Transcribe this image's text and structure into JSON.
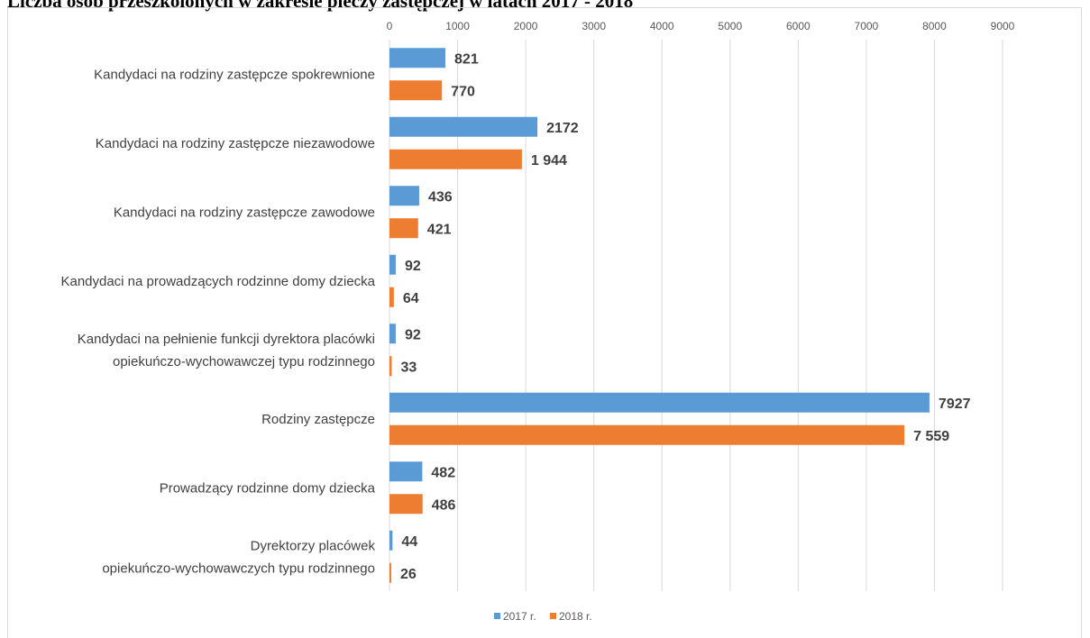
{
  "page": {
    "title": "Liczba osób przeszkolonych w zakresie pieczy zastępczej w latach 2017 - 2018"
  },
  "chart_data": {
    "type": "bar",
    "orientation": "horizontal",
    "title": "Liczba osób przeszkolonych w zakresie pieczy zastępczej w latach 2017 - 2018",
    "categories": [
      [
        "Kandydaci na rodziny zastępcze spokrewnione"
      ],
      [
        "Kandydaci na rodziny zastępcze niezawodowe"
      ],
      [
        "Kandydaci na rodziny zastępcze zawodowe"
      ],
      [
        "Kandydaci na prowadzących rodzinne domy dziecka"
      ],
      [
        "Kandydaci na pełnienie funkcji dyrektora placówki",
        "opiekuńczo-wychowawczej typu rodzinnego"
      ],
      [
        "Rodziny zastępcze"
      ],
      [
        "Prowadzący rodzinne domy dziecka"
      ],
      [
        "Dyrektorzy placówek",
        "opiekuńczo-wychowawczych typu rodzinnego"
      ]
    ],
    "series": [
      {
        "name": "2017 r.",
        "color": "#5b9bd5",
        "values": [
          821,
          2172,
          436,
          92,
          92,
          7927,
          482,
          44
        ],
        "labels": [
          "821",
          "2172",
          "436",
          "92",
          "92",
          "7927",
          "482",
          "44"
        ]
      },
      {
        "name": "2018 r.",
        "color": "#ed7d31",
        "values": [
          770,
          1944,
          421,
          64,
          33,
          7559,
          486,
          26
        ],
        "labels": [
          "770",
          "1 944",
          "421",
          "64",
          "33",
          "7 559",
          "486",
          "26"
        ]
      }
    ],
    "xlim": [
      0,
      9000
    ],
    "xticks": [
      0,
      1000,
      2000,
      3000,
      4000,
      5000,
      6000,
      7000,
      8000,
      9000
    ],
    "xaxis_position": "top",
    "grid": true,
    "legend": "bottom"
  }
}
